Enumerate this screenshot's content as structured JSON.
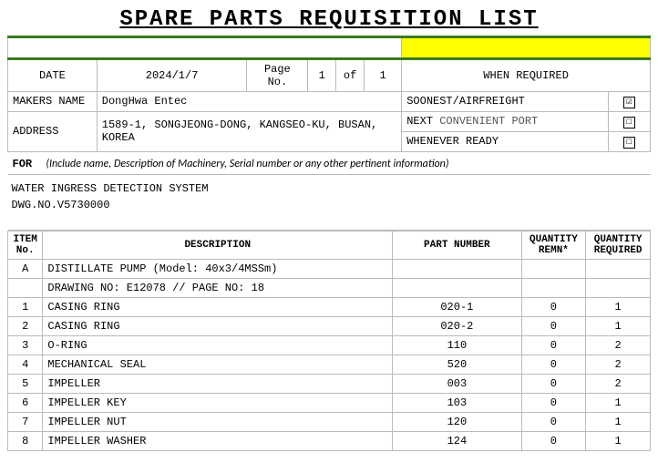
{
  "title": "SPARE PARTS REQUISITION LIST",
  "header": {
    "date_label": "DATE",
    "date_value": "2024/1/7",
    "page_label": "Page No.",
    "page_cur": "1",
    "page_of": "of",
    "page_total": "1",
    "when_required_label": "WHEN REQUIRED",
    "makers_name_label": "MAKERS  NAME",
    "makers_name_value": "DongHwa Entec",
    "address_label": "ADDRESS",
    "address_value": "1589-1, SONGJEONG-DONG, KANGSEO-KU, BUSAN, KOREA",
    "req_opts": {
      "soonest": {
        "label": "SOONEST/AIRFREIGHT",
        "checked": "☑"
      },
      "next": {
        "label1": "NEXT",
        "label2": "CONVENIENT PORT",
        "checked": "☐"
      },
      "whenever": {
        "label": "WHENEVER READY",
        "checked": "☐"
      }
    }
  },
  "for": {
    "label": "FOR",
    "hint": "(Include name, Description of Machinery, Serial number or any other pertinent information)",
    "line1": "WATER INGRESS DETECTION SYSTEM",
    "line2": "DWG.NO.V5730000"
  },
  "items": {
    "col_item": "ITEM No.",
    "col_desc": "DESCRIPTION",
    "col_part": "PART NUMBER",
    "col_q1": "QUANTITY REMN*",
    "col_q2": "QUANTITY REQUIRED",
    "group_a_no": "A",
    "group_a_line1": "DISTILLATE PUMP  (Model: 40x3/4MSSm)",
    "group_a_line2": "DRAWING NO: E12078 // PAGE NO: 18",
    "rows": [
      {
        "no": "1",
        "desc": "CASING RING",
        "part": "020-1",
        "q1": "0",
        "q2": "1"
      },
      {
        "no": "2",
        "desc": "CASING RING",
        "part": "020-2",
        "q1": "0",
        "q2": "1"
      },
      {
        "no": "3",
        "desc": "O-RING",
        "part": "110",
        "q1": "0",
        "q2": "2"
      },
      {
        "no": "4",
        "desc": "MECHANICAL SEAL",
        "part": "520",
        "q1": "0",
        "q2": "2"
      },
      {
        "no": "5",
        "desc": "IMPELLER",
        "part": "003",
        "q1": "0",
        "q2": "2"
      },
      {
        "no": "6",
        "desc": "IMPELLER KEY",
        "part": "103",
        "q1": "0",
        "q2": "1"
      },
      {
        "no": "7",
        "desc": "IMPELLER NUT",
        "part": "120",
        "q1": "0",
        "q2": "1"
      },
      {
        "no": "8",
        "desc": "IMPELLER WASHER",
        "part": "124",
        "q1": "0",
        "q2": "1"
      }
    ]
  }
}
